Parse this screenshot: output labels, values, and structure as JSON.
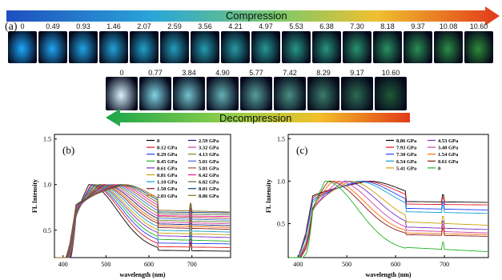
{
  "figure": {
    "panel_a": "(a)",
    "compression_label": "Compression",
    "decompression_label": "Decompression",
    "compression_pressures": [
      "0",
      "0.49",
      "0.93",
      "1.46",
      "2.07",
      "2.59",
      "3.56",
      "4.21",
      "4.97",
      "5.53",
      "6.38",
      "7.30",
      "8.18",
      "9.37",
      "10.08",
      "10.60"
    ],
    "decompression_pressures": [
      "0",
      "0.77",
      "3.84",
      "4.90",
      "5.77",
      "7.42",
      "8.29",
      "9.17",
      "10.60"
    ],
    "colors": {
      "arrow_compression": [
        "#1f4fbf",
        "#2aa6d8",
        "#7cc96a",
        "#f0c030",
        "#e23a1a"
      ],
      "arrow_decompression": [
        "#1aa64a",
        "#8fcf4a",
        "#f2c02a",
        "#e23a1a"
      ]
    }
  },
  "chart_data": [
    {
      "type": "line",
      "panel_letter": "(b)",
      "xlabel": "wavelength (nm)",
      "ylabel": "FL Intensity",
      "xlim": [
        380,
        790
      ],
      "ylim": [
        0.2,
        1.55
      ],
      "xticks": [
        "400",
        "500",
        "600",
        "700"
      ],
      "yticks": [
        "0.5",
        "1.0",
        "1.5"
      ],
      "legend_position": "top-right",
      "series": [
        {
          "name": "0",
          "color": "#000000",
          "peak": 460,
          "base": 0.33,
          "long": 0.28,
          "tail": 0.27
        },
        {
          "name": "0.12 GPa",
          "color": "#e8141b",
          "peak": 465,
          "base": 0.36,
          "long": 0.32,
          "tail": 0.31
        },
        {
          "name": "0.29 GPa",
          "color": "#1f3cff",
          "peak": 468,
          "base": 0.4,
          "long": 0.36,
          "tail": 0.35
        },
        {
          "name": "0.45 GPa",
          "color": "#1fb01f",
          "peak": 472,
          "base": 0.42,
          "long": 0.4,
          "tail": 0.38
        },
        {
          "name": "0.61 GPa",
          "color": "#7a2fc0",
          "peak": 475,
          "base": 0.45,
          "long": 0.44,
          "tail": 0.42
        },
        {
          "name": "0.81 GPa",
          "color": "#c9a000",
          "peak": 478,
          "base": 0.48,
          "long": 0.47,
          "tail": 0.45
        },
        {
          "name": "1.10 GPa",
          "color": "#12a0c9",
          "peak": 482,
          "base": 0.5,
          "long": 0.5,
          "tail": 0.48
        },
        {
          "name": "1.50 GPa",
          "color": "#8a1a1a",
          "peak": 486,
          "base": 0.52,
          "long": 0.53,
          "tail": 0.51
        },
        {
          "name": "2.03 GPa",
          "color": "#ff6a00",
          "peak": 490,
          "base": 0.54,
          "long": 0.55,
          "tail": 0.53
        },
        {
          "name": "2.59 GPa",
          "color": "#1a1a6e",
          "peak": 495,
          "base": 0.56,
          "long": 0.57,
          "tail": 0.55
        },
        {
          "name": "3.32 GPa",
          "color": "#d43fa6",
          "peak": 500,
          "base": 0.58,
          "long": 0.59,
          "tail": 0.57
        },
        {
          "name": "4.13 GPa",
          "color": "#6b8e23",
          "peak": 506,
          "base": 0.6,
          "long": 0.61,
          "tail": 0.59
        },
        {
          "name": "5.01 GPa",
          "color": "#4169e1",
          "peak": 512,
          "base": 0.62,
          "long": 0.63,
          "tail": 0.61
        },
        {
          "name": "5.81 GPa",
          "color": "#a0522d",
          "peak": 518,
          "base": 0.64,
          "long": 0.65,
          "tail": 0.63
        },
        {
          "name": "6.42 GPa",
          "color": "#ff1493",
          "peak": 524,
          "base": 0.65,
          "long": 0.66,
          "tail": 0.65
        },
        {
          "name": "6.82 GPa",
          "color": "#556b2f",
          "peak": 530,
          "base": 0.67,
          "long": 0.68,
          "tail": 0.67
        },
        {
          "name": "8.01 GPa",
          "color": "#0a3d7a",
          "peak": 536,
          "base": 0.69,
          "long": 0.7,
          "tail": 0.69
        },
        {
          "name": "8.86 GPa",
          "color": "#8b6914",
          "peak": 542,
          "base": 0.71,
          "long": 0.72,
          "tail": 0.7
        }
      ]
    },
    {
      "type": "line",
      "panel_letter": "(c)",
      "xlabel": "wavelength (nm)",
      "ylabel": "FL Intensity",
      "xlim": [
        380,
        790
      ],
      "ylim": [
        0.1,
        1.55
      ],
      "xticks": [
        "400",
        "500",
        "600",
        "700"
      ],
      "yticks": [
        "0.5",
        "1.0",
        "1.5"
      ],
      "legend_position": "top-right",
      "series": [
        {
          "name": "8.86 GPa",
          "color": "#000000",
          "peak": 545,
          "base": 0.77,
          "long": 0.76,
          "tail": 0.75
        },
        {
          "name": "7.93 GPa",
          "color": "#e8141b",
          "peak": 535,
          "base": 0.74,
          "long": 0.73,
          "tail": 0.72
        },
        {
          "name": "7.30 GPa",
          "color": "#1f3cff",
          "peak": 528,
          "base": 0.7,
          "long": 0.68,
          "tail": 0.66
        },
        {
          "name": "6.54 GPa",
          "color": "#12a0c9",
          "peak": 520,
          "base": 0.66,
          "long": 0.64,
          "tail": 0.62
        },
        {
          "name": "5.41 GPa",
          "color": "#c9a000",
          "peak": 505,
          "base": 0.55,
          "long": 0.52,
          "tail": 0.48
        },
        {
          "name": "4.53 GPa",
          "color": "#7a2fc0",
          "peak": 495,
          "base": 0.5,
          "long": 0.46,
          "tail": 0.43
        },
        {
          "name": "3.40 GPa",
          "color": "#d43fa6",
          "peak": 482,
          "base": 0.45,
          "long": 0.42,
          "tail": 0.39
        },
        {
          "name": "1.54 GPa",
          "color": "#ff6a00",
          "peak": 470,
          "base": 0.42,
          "long": 0.39,
          "tail": 0.37
        },
        {
          "name": "0.61 GPa",
          "color": "#8a1a1a",
          "peak": 462,
          "base": 0.4,
          "long": 0.37,
          "tail": 0.35
        },
        {
          "name": "0",
          "color": "#1fb01f",
          "peak": 455,
          "base": 0.28,
          "long": 0.22,
          "tail": 0.17
        }
      ]
    }
  ]
}
